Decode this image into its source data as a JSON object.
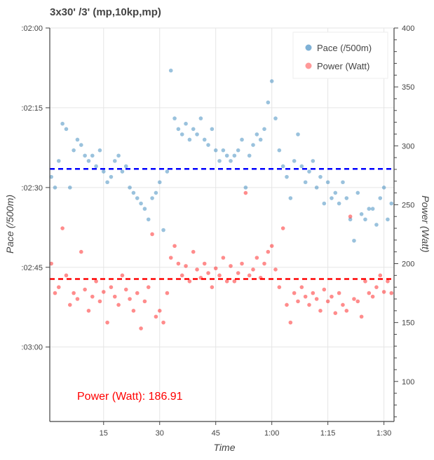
{
  "chart_data": {
    "type": "scatter",
    "title": "3x30' /3' (mp,10kp,mp)",
    "xlabel": "Time",
    "ylabel_left": "Pace (/500m)",
    "ylabel_right": "Power (Watt)",
    "xlim_minutes": [
      0.6,
      92.7
    ],
    "ylim_left_seconds": [
      194,
      120
    ],
    "ylim_right": [
      66,
      400
    ],
    "x_ticks": [
      {
        "v": 15,
        "label": "15"
      },
      {
        "v": 30,
        "label": "30"
      },
      {
        "v": 45,
        "label": "45"
      },
      {
        "v": 60,
        "label": "1:00"
      },
      {
        "v": 75,
        "label": "1:15"
      },
      {
        "v": 90,
        "label": "1:30"
      }
    ],
    "y_left_ticks": [
      {
        "v": 120,
        "label": ":02:00"
      },
      {
        "v": 135,
        "label": ":02:15"
      },
      {
        "v": 150,
        "label": ":02:30"
      },
      {
        "v": 165,
        "label": ":02:45"
      },
      {
        "v": 180,
        "label": ":03:00"
      }
    ],
    "y_right_ticks": [
      {
        "v": 100,
        "label": "100"
      },
      {
        "v": 150,
        "label": "150"
      },
      {
        "v": 200,
        "label": "200"
      },
      {
        "v": 250,
        "label": "250"
      },
      {
        "v": 300,
        "label": "300"
      },
      {
        "v": 350,
        "label": "350"
      },
      {
        "v": 400,
        "label": "400"
      }
    ],
    "grid": true,
    "legend": {
      "placement": "top-right",
      "entries": [
        {
          "label": "Pace (/500m)",
          "color": "#7fb1d6"
        },
        {
          "label": "Power (Watt)",
          "color": "#ff7f7f"
        }
      ]
    },
    "annotation": "Power (Watt): 186.91",
    "mean_pace_seconds": 146.5,
    "mean_power": 186.91,
    "colors": {
      "pace": "#1f77b4",
      "power": "#ff0000",
      "pace_mean": "#0000ff",
      "power_mean": "#ff0000"
    },
    "series": [
      {
        "name": "Pace (/500m)",
        "axis": "left",
        "x": [
          1,
          2,
          3,
          4,
          5,
          6,
          7,
          8,
          9,
          10,
          11,
          12,
          13,
          14,
          15,
          16,
          17,
          18,
          19,
          20,
          21,
          22,
          23,
          24,
          25,
          26,
          27,
          28,
          29,
          30,
          31,
          32,
          33,
          34,
          35,
          36,
          37,
          38,
          39,
          40,
          41,
          42,
          43,
          44,
          45,
          46,
          47,
          48,
          49,
          50,
          51,
          52,
          53,
          54,
          55,
          56,
          57,
          58,
          59,
          60,
          61,
          62,
          63,
          64,
          65,
          66,
          67,
          68,
          69,
          70,
          71,
          72,
          73,
          74,
          75,
          76,
          77,
          78,
          79,
          80,
          81,
          82,
          83,
          84,
          85,
          86,
          87,
          88,
          89,
          90,
          91,
          92
        ],
        "y": [
          148,
          150,
          145,
          138,
          139,
          150,
          143,
          141,
          142,
          144,
          145,
          144,
          146,
          143,
          147,
          149,
          148,
          145,
          144,
          147,
          146,
          150,
          151,
          152,
          153,
          154,
          156,
          152,
          151,
          149,
          158,
          147,
          128,
          137,
          139,
          140,
          138,
          141,
          139,
          140,
          137,
          141,
          142,
          139,
          143,
          145,
          143,
          144,
          145,
          144,
          143,
          141,
          150,
          144,
          142,
          140,
          141,
          139,
          134,
          130,
          137,
          143,
          146,
          148,
          152,
          145,
          140,
          146,
          149,
          147,
          145,
          150,
          148,
          153,
          149,
          152,
          151,
          153,
          149,
          152,
          156,
          160,
          151,
          155,
          156,
          154,
          154,
          157,
          152,
          150,
          156,
          153
        ]
      },
      {
        "name": "Power (Watt)",
        "axis": "right",
        "x": [
          1,
          2,
          3,
          4,
          5,
          6,
          7,
          8,
          9,
          10,
          11,
          12,
          13,
          14,
          15,
          16,
          17,
          18,
          19,
          20,
          21,
          22,
          23,
          24,
          25,
          26,
          27,
          28,
          29,
          30,
          31,
          32,
          33,
          34,
          35,
          36,
          37,
          38,
          39,
          40,
          41,
          42,
          43,
          44,
          45,
          46,
          47,
          48,
          49,
          50,
          51,
          52,
          53,
          54,
          55,
          56,
          57,
          58,
          59,
          60,
          61,
          62,
          63,
          64,
          65,
          66,
          67,
          68,
          69,
          70,
          71,
          72,
          73,
          74,
          75,
          76,
          77,
          78,
          79,
          80,
          81,
          82,
          83,
          84,
          85,
          86,
          87,
          88,
          89,
          90,
          91,
          92
        ],
        "y": [
          200,
          175,
          180,
          230,
          190,
          165,
          175,
          170,
          210,
          178,
          160,
          172,
          185,
          168,
          176,
          150,
          180,
          172,
          165,
          190,
          178,
          170,
          160,
          175,
          145,
          168,
          180,
          225,
          155,
          160,
          150,
          175,
          205,
          215,
          200,
          190,
          198,
          185,
          210,
          195,
          188,
          200,
          192,
          180,
          196,
          190,
          205,
          185,
          198,
          185,
          192,
          200,
          260,
          190,
          195,
          205,
          188,
          200,
          210,
          215,
          195,
          180,
          230,
          165,
          150,
          175,
          168,
          180,
          172,
          165,
          175,
          170,
          160,
          178,
          168,
          172,
          158,
          175,
          165,
          160,
          240,
          170,
          168,
          155,
          185,
          175,
          172,
          180,
          190,
          176,
          185,
          175
        ]
      }
    ]
  }
}
